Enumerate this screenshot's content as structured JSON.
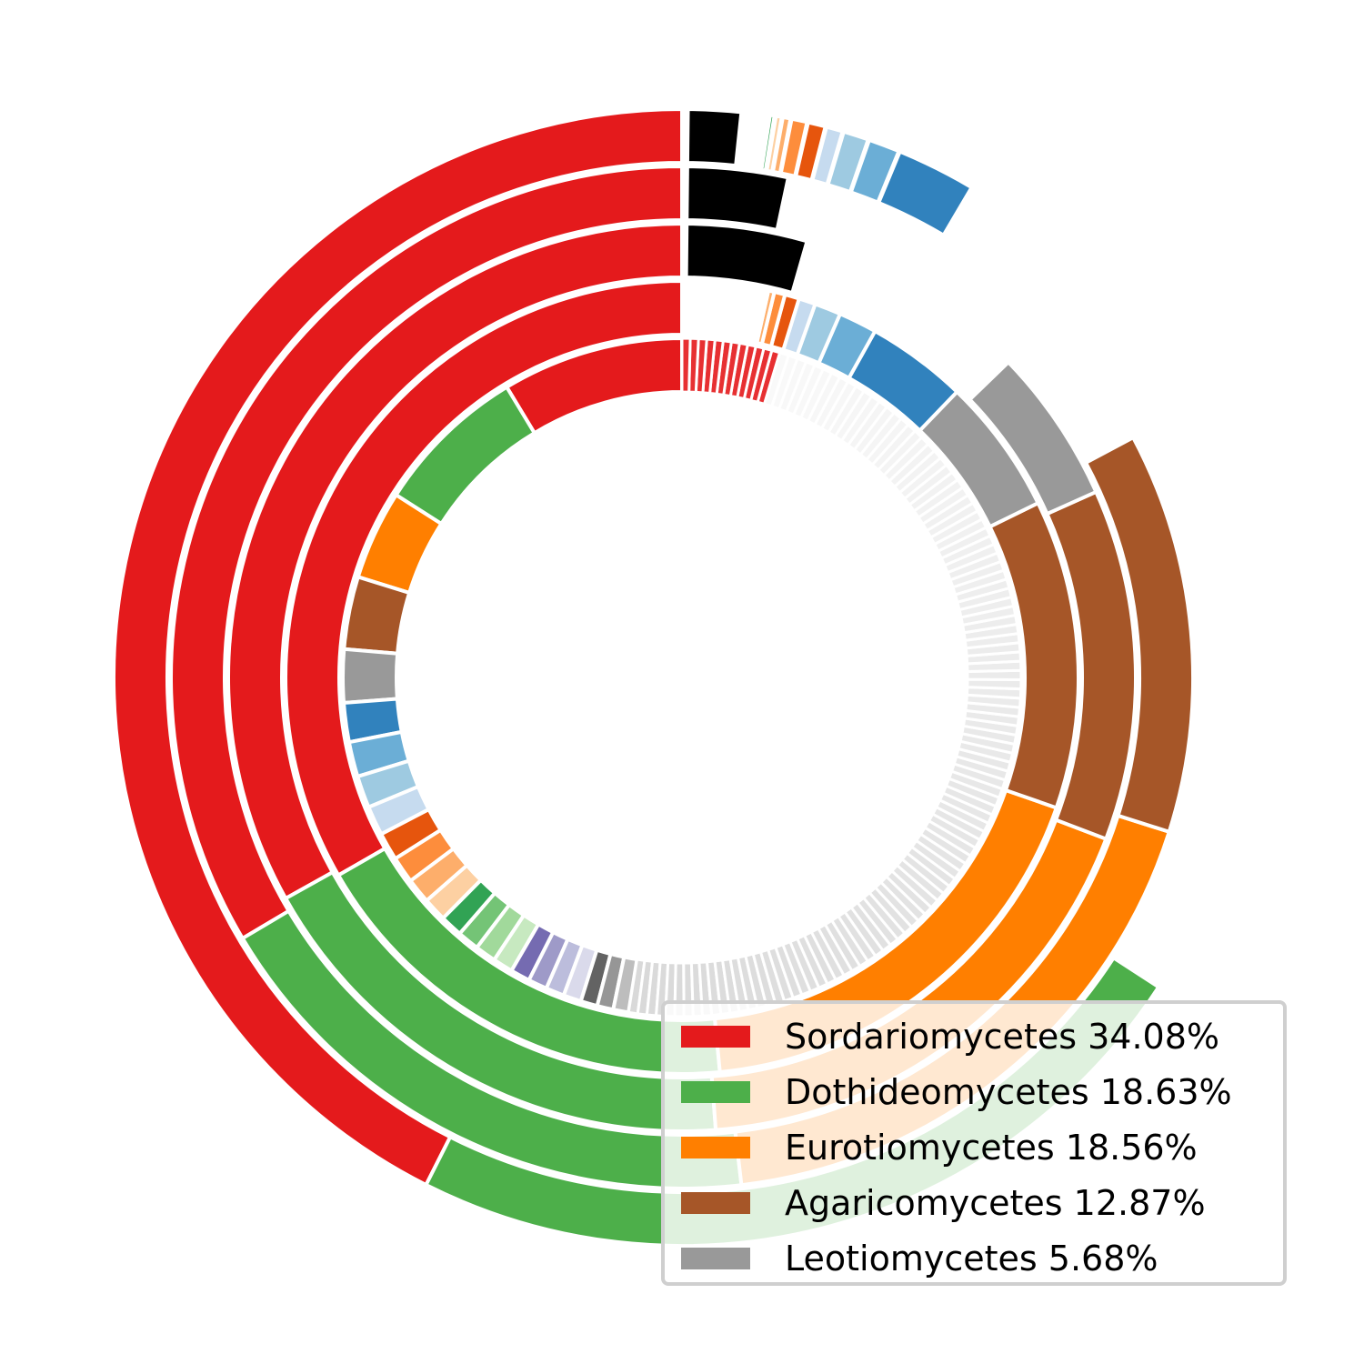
{
  "chart_data": {
    "type": "sunburst-bar",
    "title": "",
    "legend_position": "bottom-right",
    "legend": [
      {
        "label": "Sordariomycetes 34.08%",
        "color": "#e41a1c"
      },
      {
        "label": "Dothideomycetes 18.63%",
        "color": "#4daf4a"
      },
      {
        "label": "Eurotiomycetes 18.56%",
        "color": "#ff7f00"
      },
      {
        "label": "Agaricomycetes 12.87%",
        "color": "#a65628"
      },
      {
        "label": "Leotiomycetes 5.68%",
        "color": "#999999"
      }
    ],
    "classes": [
      {
        "name": "Sordariomycetes",
        "percent": 34.08,
        "color": "#e41a1c"
      },
      {
        "name": "Dothideomycetes",
        "percent": 18.63,
        "color": "#4daf4a"
      },
      {
        "name": "Eurotiomycetes",
        "percent": 18.56,
        "color": "#ff7f00"
      },
      {
        "name": "Agaricomycetes",
        "percent": 12.87,
        "color": "#a65628"
      },
      {
        "name": "Leotiomycetes",
        "percent": 5.68,
        "color": "#999999"
      }
    ],
    "rings": [
      {
        "level": 1,
        "sweep_deg": 237,
        "segments": [
          {
            "class": "Sordariomycetes",
            "value": 34.08
          },
          {
            "class": "Dothideomycetes",
            "value": 18.63
          }
        ]
      },
      {
        "level": 2,
        "sweep_deg": 298,
        "segments": [
          {
            "class": "Sordariomycetes",
            "value": 34.08
          },
          {
            "class": "Dothideomycetes",
            "value": 18.63
          },
          {
            "class": "Eurotiomycetes",
            "value": 18.56
          },
          {
            "class": "Agaricomycetes",
            "value": 12.87
          }
        ]
      },
      {
        "level": 3,
        "sweep_deg": 314,
        "segments": [
          {
            "class": "Sordariomycetes",
            "value": 34.08
          },
          {
            "class": "Dothideomycetes",
            "value": 18.63
          },
          {
            "class": "Eurotiomycetes",
            "value": 18.56
          },
          {
            "class": "Agaricomycetes",
            "value": 12.87
          },
          {
            "class": "Leotiomycetes",
            "value": 5.68
          }
        ]
      },
      {
        "level": 4,
        "sweep_deg": 348,
        "segments": [
          {
            "class": "Sordariomycetes",
            "value": 34.08
          },
          {
            "class": "Dothideomycetes",
            "value": 18.63
          },
          {
            "class": "Eurotiomycetes",
            "value": 18.56
          },
          {
            "class": "Agaricomycetes",
            "value": 12.87
          },
          {
            "class": "Leotiomycetes",
            "value": 5.68
          },
          {
            "class": "other-01",
            "value": 4.2,
            "color": "#3182bd"
          },
          {
            "class": "other-02",
            "value": 1.6,
            "color": "#6baed6"
          },
          {
            "class": "other-03",
            "value": 1.1,
            "color": "#9ecae1"
          },
          {
            "class": "other-04",
            "value": 0.7,
            "color": "#c6dbef"
          },
          {
            "class": "other-05",
            "value": 0.6,
            "color": "#e6550d"
          },
          {
            "class": "other-06",
            "value": 0.45,
            "color": "#fd8d3c"
          },
          {
            "class": "other-07",
            "value": 0.25,
            "color": "#fdae6b"
          },
          {
            "class": "other-08",
            "value": 0.12,
            "color": "#fdd0a2"
          },
          {
            "class": "other-09",
            "value": 0.05,
            "color": "#31a354"
          }
        ]
      },
      {
        "level": 5,
        "sweep_deg": 360,
        "segments": [
          {
            "class": "Sordariomycetes",
            "value": 6.5
          },
          {
            "class": "Dothideomycetes",
            "value": 5.5
          },
          {
            "class": "Eurotiomycetes",
            "value": 3.2
          },
          {
            "class": "Agaricomycetes",
            "value": 2.6
          },
          {
            "class": "Leotiomycetes",
            "value": 1.9
          },
          {
            "class": "other-01",
            "value": 1.4,
            "color": "#3182bd"
          },
          {
            "class": "other-02",
            "value": 1.25,
            "color": "#6baed6"
          },
          {
            "class": "other-03",
            "value": 1.15,
            "color": "#9ecae1"
          },
          {
            "class": "other-04",
            "value": 1.05,
            "color": "#c6dbef"
          },
          {
            "class": "other-05",
            "value": 1.0,
            "color": "#e6550d"
          },
          {
            "class": "other-06",
            "value": 0.95,
            "color": "#fd8d3c"
          },
          {
            "class": "other-07",
            "value": 0.9,
            "color": "#fdae6b"
          },
          {
            "class": "other-08",
            "value": 0.85,
            "color": "#fdd0a2"
          },
          {
            "class": "other-09",
            "value": 0.8,
            "color": "#31a354"
          },
          {
            "class": "other-10",
            "value": 0.78,
            "color": "#74c476"
          },
          {
            "class": "other-11",
            "value": 0.75,
            "color": "#a1d99b"
          },
          {
            "class": "other-12",
            "value": 0.72,
            "color": "#c7e9c0"
          },
          {
            "class": "other-13",
            "value": 0.7,
            "color": "#756bb1"
          },
          {
            "class": "other-14",
            "value": 0.68,
            "color": "#9e9ac8"
          },
          {
            "class": "other-15",
            "value": 0.66,
            "color": "#bcbddc"
          },
          {
            "class": "other-16",
            "value": 0.64,
            "color": "#dadaeb"
          },
          {
            "class": "other-17",
            "value": 0.6,
            "color": "#636363"
          },
          {
            "class": "other-18",
            "value": 0.58,
            "color": "#969696"
          },
          {
            "class": "other-19",
            "value": 0.55,
            "color": "#bdbdbd"
          },
          {
            "class": "minor-taxa",
            "value": 36.0,
            "color": "#d9d9d9",
            "split_into": 110
          },
          {
            "class": "minor-tail",
            "value": 3.5,
            "color": "#e41a1c",
            "split_into": 12
          }
        ]
      },
      {
        "level": 6,
        "sweep_deg": 36,
        "segments": [
          {
            "class": "top-1",
            "value": 1
          }
        ]
      }
    ]
  }
}
